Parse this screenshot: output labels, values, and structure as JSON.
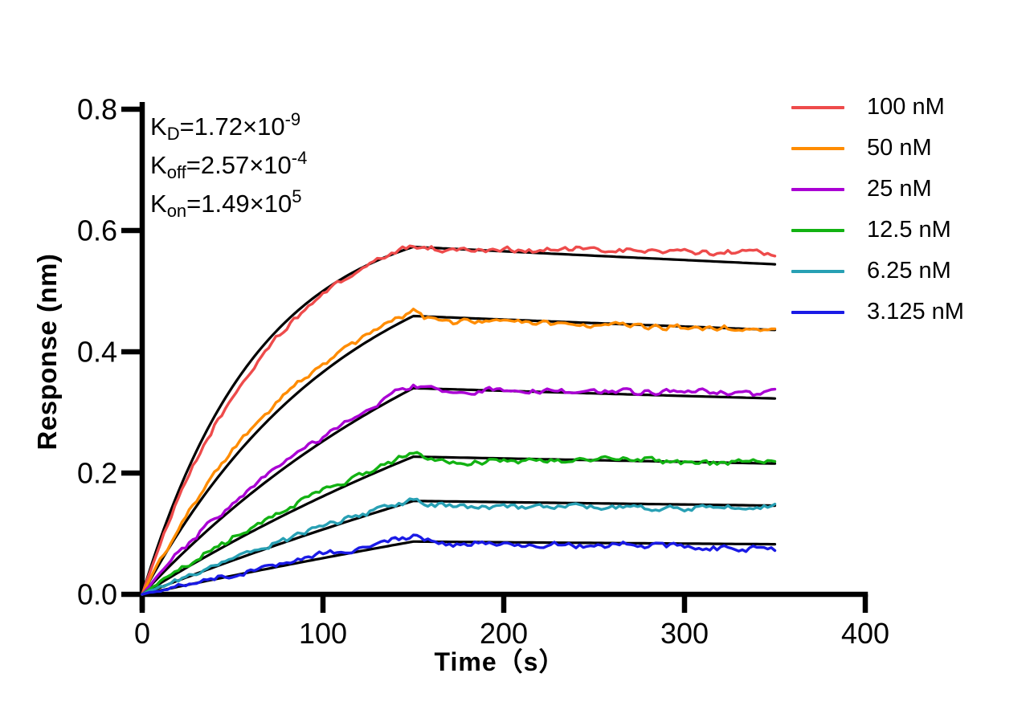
{
  "chart_data": {
    "type": "line",
    "title": "",
    "xlabel": "Time（s）",
    "ylabel": "Response (nm)",
    "xlim": [
      0,
      400
    ],
    "ylim": [
      0.0,
      0.8
    ],
    "x_ticks": [
      "0",
      "100",
      "200",
      "300",
      "400"
    ],
    "y_ticks": [
      "0.0",
      "0.2",
      "0.4",
      "0.6",
      "0.8"
    ],
    "grid": false,
    "legend_position": "outside-top-right",
    "fit_color": "#000000",
    "kinetics": {
      "KD_M": 1.72e-09,
      "koff_per_s": 0.000257,
      "kon_per_M_per_s": 149000.0
    },
    "annotations": [
      {
        "k": "K",
        "sub": "D",
        "mid": "=1.72×10",
        "sup": "-9"
      },
      {
        "k": "K",
        "sub": "off",
        "mid": "=2.57×10",
        "sup": "-4"
      },
      {
        "k": "K",
        "sub": "on",
        "mid": "=1.49×10",
        "sup": "5"
      }
    ],
    "association_end_s": 150,
    "time_end_s": 350,
    "series": [
      {
        "label": "100 nM",
        "conc_nM": 100,
        "color": "#EE4B4B",
        "peak_response": 0.578,
        "end_response": 0.564,
        "diss_start": 0.569,
        "fit_peak": 0.573,
        "kobs_fit": 0.0155,
        "kobs_trace": 0.0133
      },
      {
        "label": "50 nM",
        "conc_nM": 50,
        "color": "#FF8C00",
        "peak_response": 0.466,
        "end_response": 0.438,
        "diss_start": 0.449,
        "fit_peak": 0.459,
        "kobs_fit": 0.0088,
        "kobs_trace": 0.01
      },
      {
        "label": "25 nM",
        "conc_nM": 25,
        "color": "#AA00D4",
        "peak_response": 0.344,
        "end_response": 0.33,
        "diss_start": 0.336,
        "fit_peak": 0.34,
        "kobs_fit": 0.0048,
        "kobs_trace": 0.0056
      },
      {
        "label": "12.5 nM",
        "conc_nM": 12.5,
        "color": "#12B212",
        "peak_response": 0.234,
        "end_response": 0.218,
        "diss_start": 0.222,
        "fit_peak": 0.227,
        "kobs_fit": 0.0028,
        "kobs_trace": 0.0037
      },
      {
        "label": "6.25 nM",
        "conc_nM": 6.25,
        "color": "#28A0B4",
        "peak_response": 0.159,
        "end_response": 0.143,
        "diss_start": 0.149,
        "fit_peak": 0.154,
        "kobs_fit": 0.0017,
        "kobs_trace": 0.0025
      },
      {
        "label": "3.125 nM",
        "conc_nM": 3.125,
        "color": "#1A1AE6",
        "peak_response": 0.094,
        "end_response": 0.078,
        "diss_start": 0.084,
        "fit_peak": 0.087,
        "kobs_fit": 0.0012,
        "kobs_trace": 0.0019
      }
    ]
  }
}
